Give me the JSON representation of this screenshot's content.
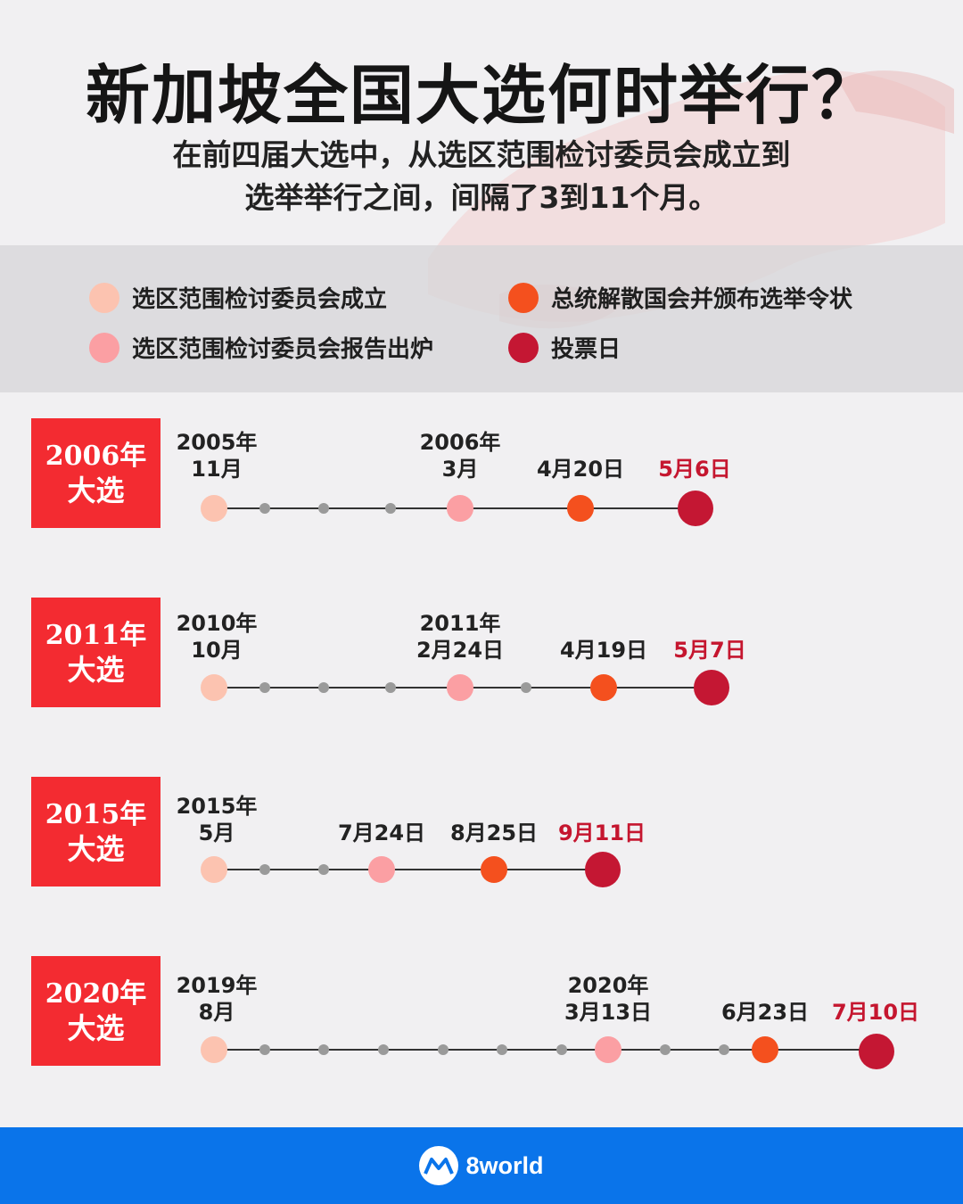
{
  "header": {
    "title": "新加坡全国大选何时举行？",
    "subtitle_line1": "在前四届大选中，从选区范围检讨委员会成立到",
    "subtitle_line2": "选举举行之间，间隔了3到11个月。"
  },
  "legend": [
    {
      "label": "选区范围检讨委员会成立",
      "color": "#fcc3b0"
    },
    {
      "label": "选区范围检讨委员会报告出炉",
      "color": "#fb9fa3"
    },
    {
      "label": "总统解散国会并颁布选举令状",
      "color": "#f4501e"
    },
    {
      "label": "投票日",
      "color": "#c41733"
    }
  ],
  "elections": [
    {
      "badge_year": "2006年",
      "badge_text": "大选",
      "labels": [
        {
          "l1": "2005年",
          "l2": "11月"
        },
        {
          "l1": "2006年",
          "l2": "3月"
        },
        {
          "l1": "",
          "l2": "4月20日"
        },
        {
          "l1": "",
          "l2": "5月6日"
        }
      ]
    },
    {
      "badge_year": "2011年",
      "badge_text": "大选",
      "labels": [
        {
          "l1": "2010年",
          "l2": "10月"
        },
        {
          "l1": "2011年",
          "l2": "2月24日"
        },
        {
          "l1": "",
          "l2": "4月19日"
        },
        {
          "l1": "",
          "l2": "5月7日"
        }
      ]
    },
    {
      "badge_year": "2015年",
      "badge_text": "大选",
      "labels": [
        {
          "l1": "2015年",
          "l2": "5月"
        },
        {
          "l1": "",
          "l2": "7月24日"
        },
        {
          "l1": "",
          "l2": "8月25日"
        },
        {
          "l1": "",
          "l2": "9月11日"
        }
      ]
    },
    {
      "badge_year": "2020年",
      "badge_text": "大选",
      "labels": [
        {
          "l1": "2019年",
          "l2": "8月"
        },
        {
          "l1": "2020年",
          "l2": "3月13日"
        },
        {
          "l1": "",
          "l2": "6月23日"
        },
        {
          "l1": "",
          "l2": "7月10日"
        }
      ]
    }
  ],
  "footer": {
    "brand": "8world",
    "color": "#0a74ea"
  }
}
